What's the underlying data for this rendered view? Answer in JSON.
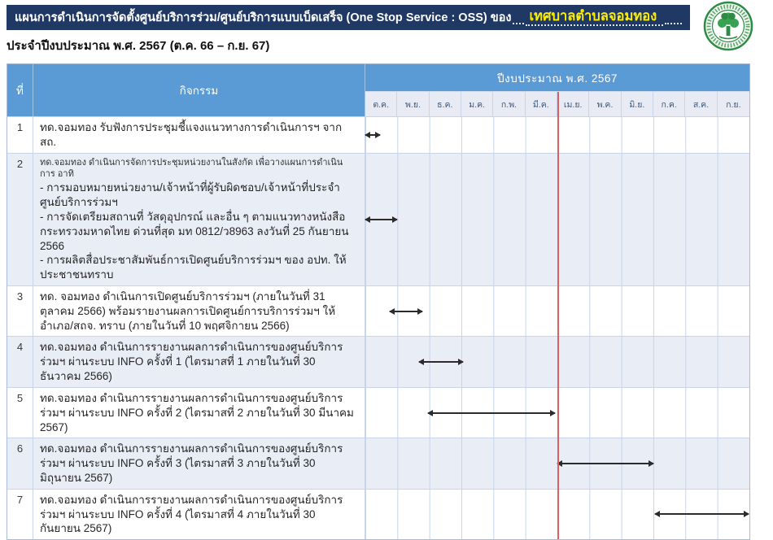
{
  "header": {
    "title": "แผนการดำเนินการจัดตั้งศูนย์บริการร่วม/ศูนย์บริการแบบเบ็ดเสร็จ (One Stop Service : OSS)  ของ",
    "org_name": "เทศบาลตำบลจอมทอง",
    "subtitle": "ประจำปีงบประมาณ พ.ศ. 2567 (ต.ค. 66 – ก.ย. 67)",
    "seal_icon": "municipal-green-seal",
    "colors": {
      "title_bar_bg": "#1f3864",
      "org_name_text": "#ffee00",
      "table_header_bg": "#5b9bd5",
      "stripe_bg": "#e9edf6",
      "current_date_line": "#d96161",
      "seal_green": "#2e8b45"
    }
  },
  "table": {
    "col_no_label": "ที่",
    "col_activity_label": "กิจกรรม",
    "year_header": "ปีงบประมาณ พ.ศ. 2567",
    "months": [
      "ต.ค.",
      "พ.ย.",
      "ธ.ค.",
      "ม.ค.",
      "ก.พ.",
      "มี.ค.",
      "เม.ย.",
      "พ.ค.",
      "มิ.ย.",
      "ก.ค.",
      "ส.ค.",
      "ก.ย."
    ],
    "rows": [
      {
        "no": "1",
        "lines": [
          {
            "text": "ทด.จอมทอง รับฟังการประชุมชี้แจงแนวทางการดำเนินการฯ จาก สถ.",
            "small": false
          }
        ],
        "span": {
          "start_month": 0.0,
          "end_month": 0.45
        }
      },
      {
        "no": "2",
        "lines": [
          {
            "text": "ทด.จอมทอง ดำเนินการจัดการประชุมหน่วยงานในสังกัด เพื่อวางแผนการดำเนินการ อาทิ",
            "small": true
          },
          {
            "text": "- การมอบหมายหน่วยงาน/เจ้าหน้าที่ผู้รับผิดชอบ/เจ้าหน้าที่ประจำศูนย์บริการร่วมฯ",
            "small": false
          },
          {
            "text": "- การจัดเตรียมสถานที่ วัสดุอุปกรณ์ และอื่น ๆ ตามแนวทางหนังสือกระทรวงมหาดไทย ด่วนที่สุด มท 0812/ว8963 ลงวันที่ 25 กันยายน 2566",
            "small": false
          },
          {
            "text": "- การผลิตสื่อประชาสัมพันธ์การเปิดศูนย์บริการร่วมฯ ของ อปท. ให้ประชาชนทราบ",
            "small": false
          }
        ],
        "span": {
          "start_month": 0.0,
          "end_month": 0.98
        }
      },
      {
        "no": "3",
        "lines": [
          {
            "text": "ทด. จอมทอง ดำเนินการเปิดศูนย์บริการร่วมฯ (ภายในวันที่ 31 ตุลาคม 2566) พร้อมรายงานผลการเปิดศูนย์การบริการร่วมฯ ให้อำเภอ/สถจ. ทราบ (ภายในวันที่ 10 พฤศจิกายน 2566)",
            "small": false
          }
        ],
        "span": {
          "start_month": 0.75,
          "end_month": 1.78
        }
      },
      {
        "no": "4",
        "lines": [
          {
            "text": "ทด.จอมทอง ดำเนินการรายงานผลการดำเนินการของศูนย์บริการร่วมฯ ผ่านระบบ INFO ครั้งที่ 1 (ไตรมาสที่ 1 ภายในวันที่ 30 ธันวาคม 2566)",
            "small": false
          }
        ],
        "span": {
          "start_month": 1.68,
          "end_month": 3.05
        }
      },
      {
        "no": "5",
        "lines": [
          {
            "text": "ทด.จอมทอง ดำเนินการรายงานผลการดำเนินการของศูนย์บริการร่วมฯ ผ่านระบบ INFO ครั้งที่ 2 (ไตรมาสที่ 2 ภายในวันที่ 30 มีนาคม 2567)",
            "small": false
          }
        ],
        "span": {
          "start_month": 1.95,
          "end_month": 5.92
        }
      },
      {
        "no": "6",
        "lines": [
          {
            "text": "ทด.จอมทอง ดำเนินการรายงานผลการดำเนินการของศูนย์บริการร่วมฯ ผ่านระบบ INFO ครั้งที่ 3 (ไตรมาสที่ 3 ภายในวันที่ 30 มิถุนายน 2567)",
            "small": false
          }
        ],
        "span": {
          "start_month": 6.0,
          "end_month": 9.0
        }
      },
      {
        "no": "7",
        "lines": [
          {
            "text": "ทด.จอมทอง ดำเนินการรายงานผลการดำเนินการของศูนย์บริการร่วมฯ ผ่านระบบ INFO ครั้งที่ 4 (ไตรมาสที่ 4 ภายในวันที่ 30 กันยายน 2567)",
            "small": false
          }
        ],
        "span": {
          "start_month": 9.05,
          "end_month": 11.97
        }
      }
    ],
    "current_date_line_month": 6.0
  },
  "chart_data": {
    "type": "gantt",
    "title": "แผนการดำเนินการจัดตั้งศูนย์บริการร่วม/ศูนย์บริการแบบเบ็ดเสร็จ (One Stop Service : OSS) ของเทศบาลตำบลจอมทอง",
    "x_axis": [
      "ต.ค.",
      "พ.ย.",
      "ธ.ค.",
      "ม.ค.",
      "ก.พ.",
      "มี.ค.",
      "เม.ย.",
      "พ.ค.",
      "มิ.ย.",
      "ก.ค.",
      "ส.ค.",
      "ก.ย."
    ],
    "x_axis_group_label": "ปีงบประมาณ พ.ศ. 2567",
    "bars": [
      {
        "task": 1,
        "start_month": 0.0,
        "end_month": 0.45
      },
      {
        "task": 2,
        "start_month": 0.0,
        "end_month": 0.98
      },
      {
        "task": 3,
        "start_month": 0.75,
        "end_month": 1.78
      },
      {
        "task": 4,
        "start_month": 1.68,
        "end_month": 3.05
      },
      {
        "task": 5,
        "start_month": 1.95,
        "end_month": 5.92
      },
      {
        "task": 6,
        "start_month": 6.0,
        "end_month": 9.0
      },
      {
        "task": 7,
        "start_month": 9.05,
        "end_month": 11.97
      }
    ],
    "reference_line_month": 6.0
  }
}
